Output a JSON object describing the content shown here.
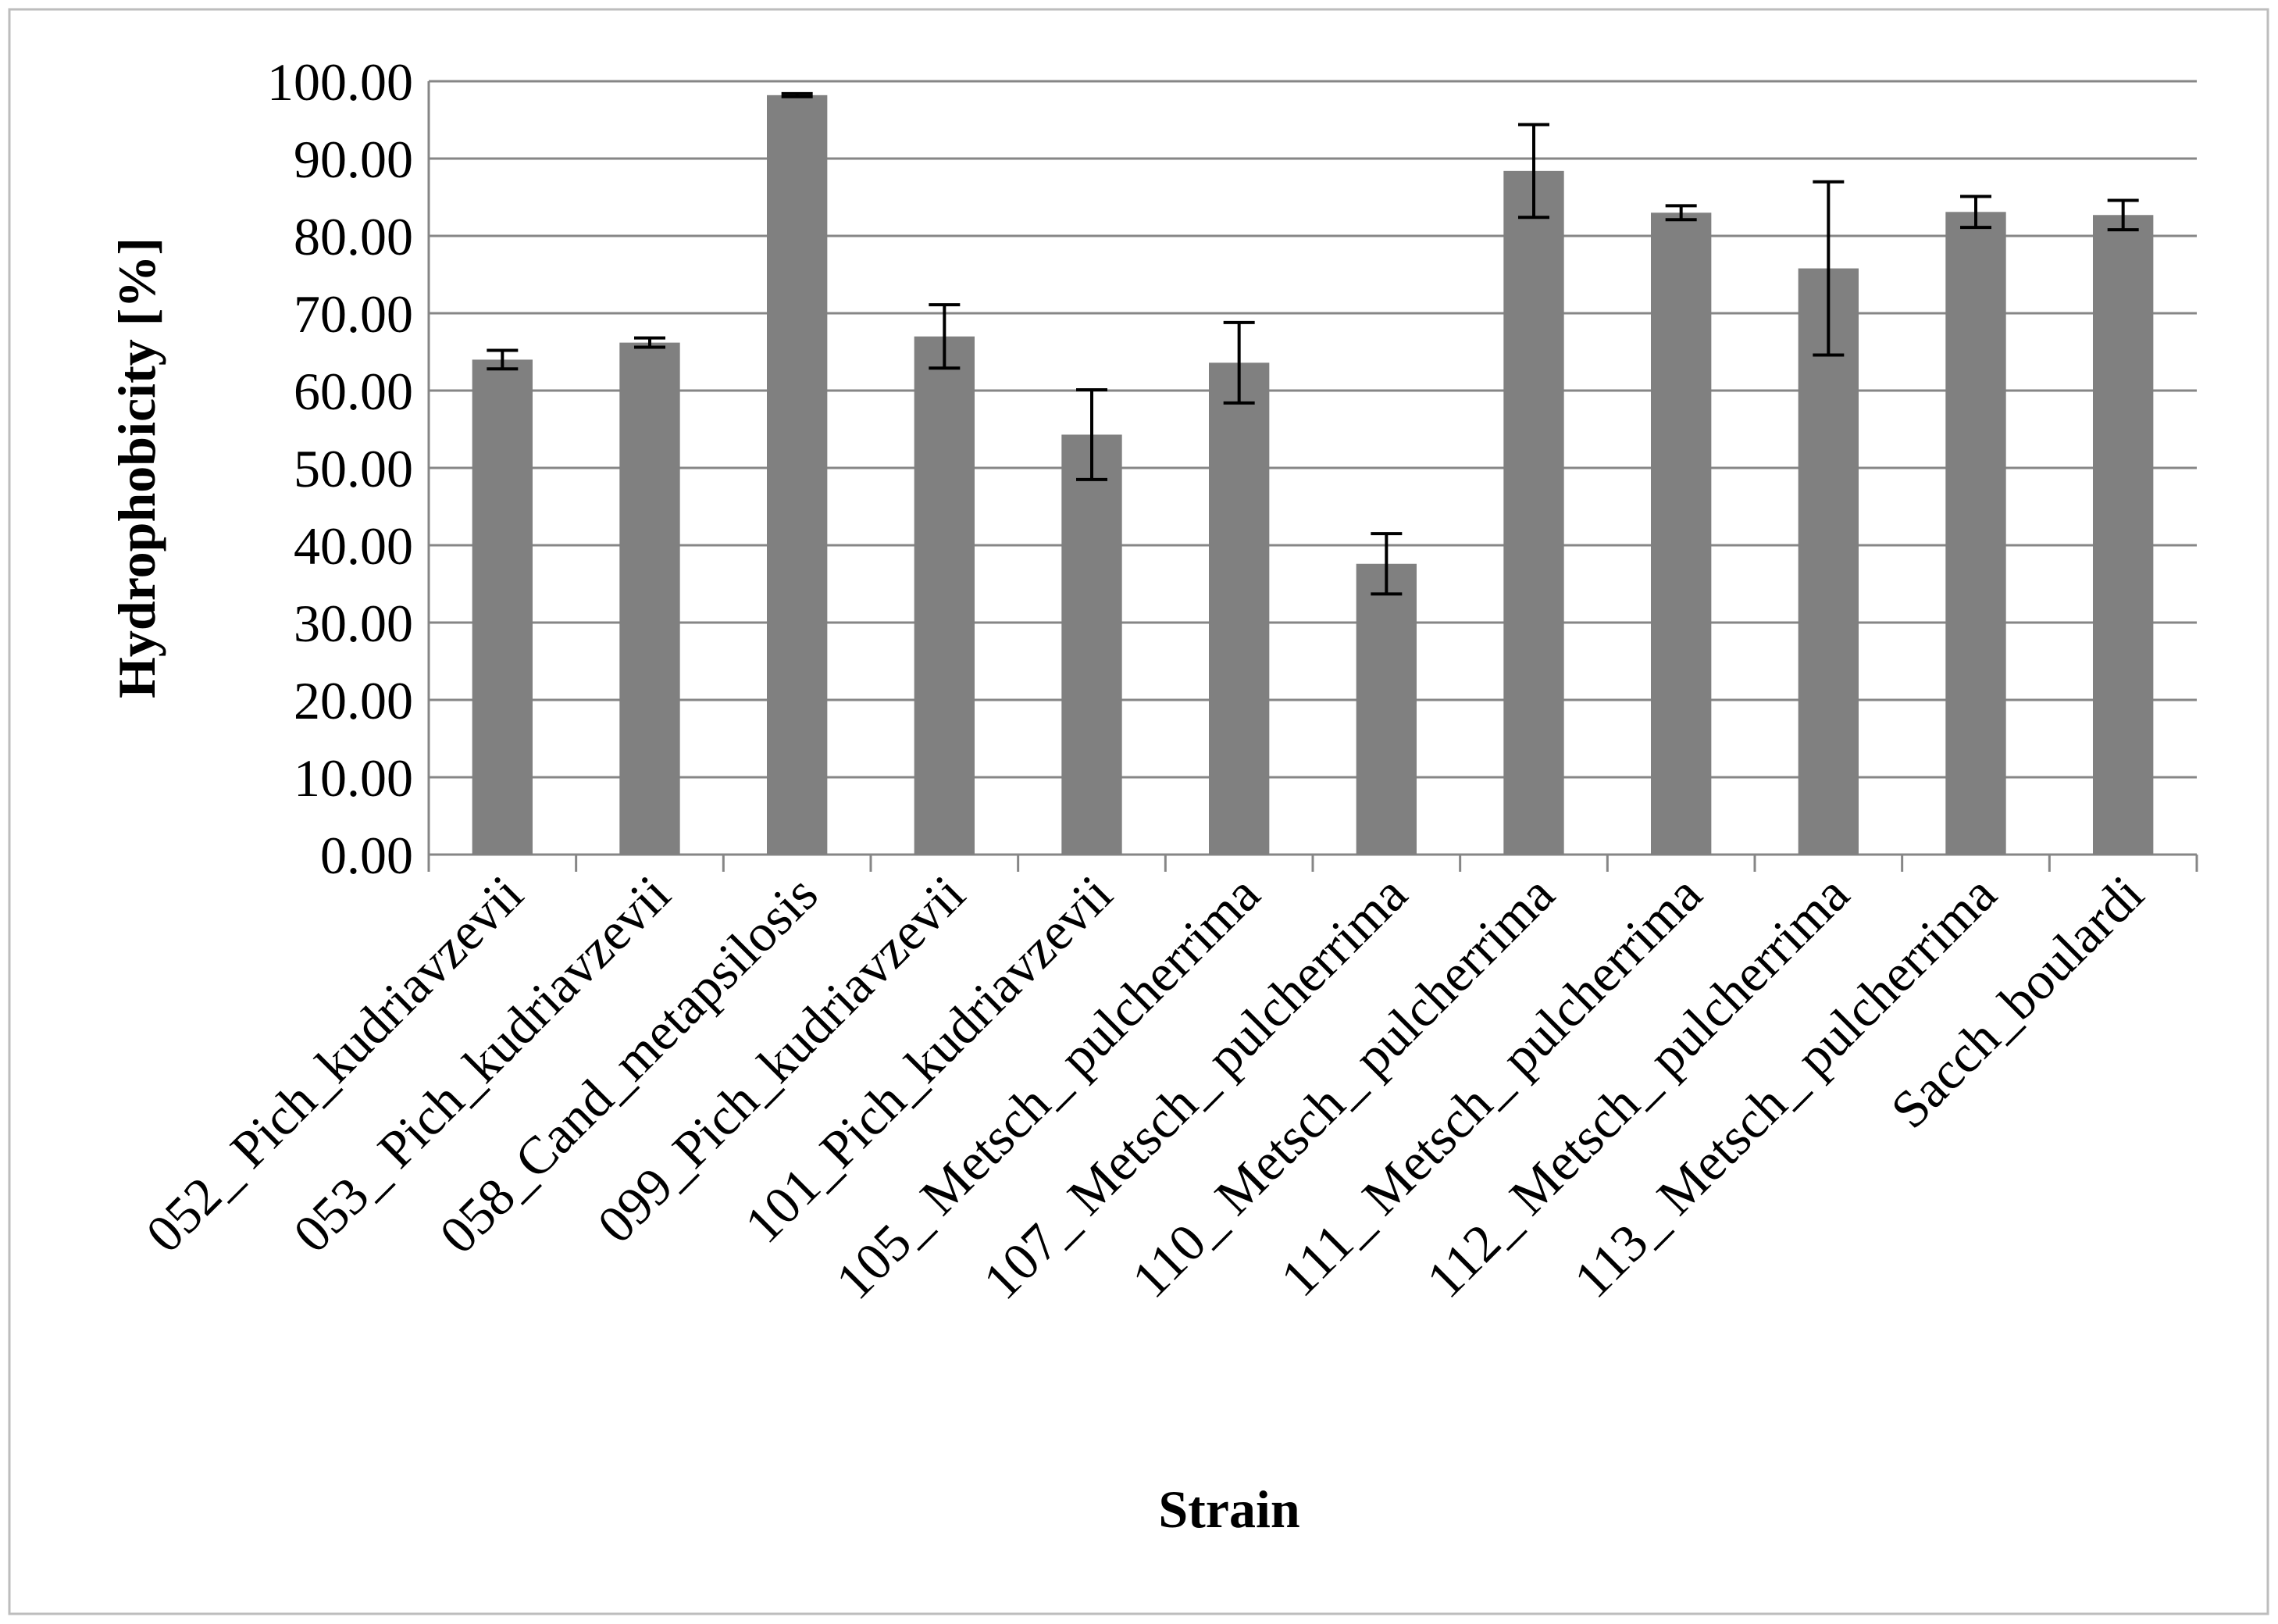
{
  "chart_data": {
    "type": "bar",
    "x_label": "Strain",
    "y_label": "Hydrophobicity  [%]",
    "categories": [
      "052_ Pich_kudriavzevii",
      "053_ Pich_kudriavzevii",
      "058_Cand_metapsilosis",
      "099_Pich_kudriavzevii",
      "101_Pich_kudriavzevii",
      "105_ Metsch_ pulcherrima",
      "107_ Metsch_ pulcherrima",
      "110_ Metsch_ pulcherrima",
      "111_ Metsch_ pulcherrima",
      "112_ Metsch_ pulcherrima",
      "113_ Metsch_ pulcherrima",
      "Sacch_boulardi"
    ],
    "values": [
      64.0,
      66.2,
      98.2,
      67.0,
      54.3,
      63.6,
      37.6,
      88.4,
      83.0,
      75.8,
      83.1,
      82.7
    ],
    "errors": [
      1.2,
      0.6,
      0.2,
      4.1,
      5.8,
      5.2,
      3.9,
      6.0,
      0.9,
      11.2,
      2.0,
      1.9
    ],
    "color": "#808080",
    "ylim": [
      0,
      100
    ],
    "yticks": [
      {
        "value": 0,
        "label": "0.00"
      },
      {
        "value": 10,
        "label": "10.00"
      },
      {
        "value": 20,
        "label": "20.00"
      },
      {
        "value": 30,
        "label": "30.00"
      },
      {
        "value": 40,
        "label": "40.00"
      },
      {
        "value": 50,
        "label": "50.00"
      },
      {
        "value": 60,
        "label": "60.00"
      },
      {
        "value": 70,
        "label": "70.00"
      },
      {
        "value": 80,
        "label": "80.00"
      },
      {
        "value": 90,
        "label": "90.00"
      },
      {
        "value": 100,
        "label": "100.00"
      }
    ],
    "grid": true
  }
}
